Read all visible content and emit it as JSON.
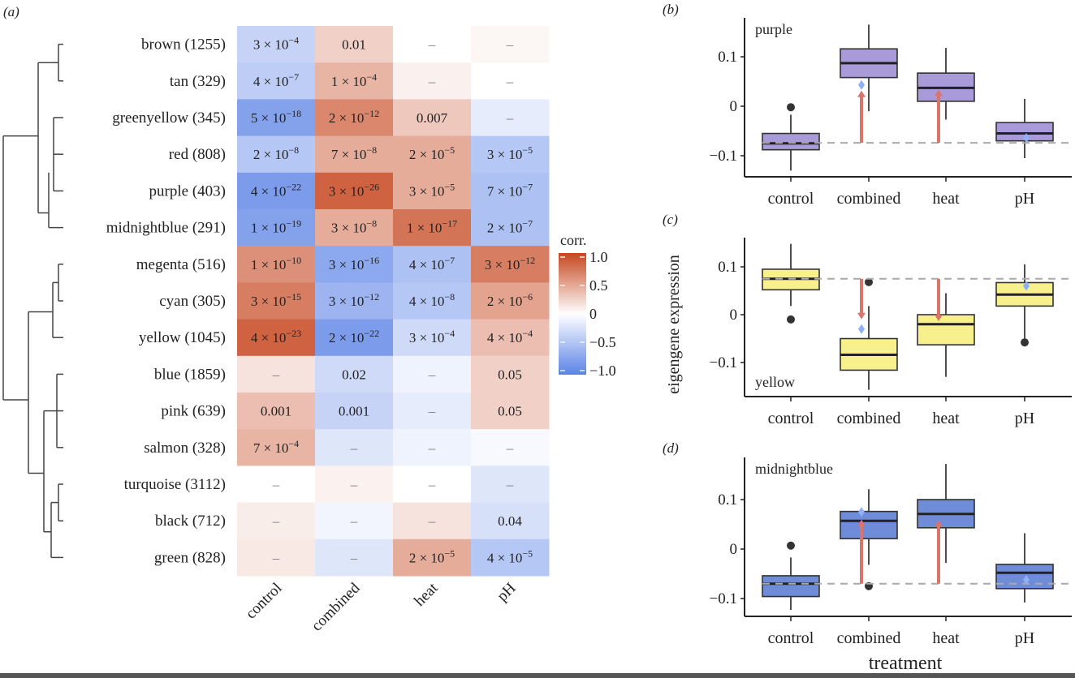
{
  "chart_data": [
    {
      "type": "heatmap",
      "panel_label": "(a)",
      "title": "",
      "columns": [
        "control",
        "combined",
        "heat",
        "pH"
      ],
      "rows": [
        "brown (1255)",
        "tan (329)",
        "greenyellow (345)",
        "red (808)",
        "purple (403)",
        "midnightblue (291)",
        "megenta (516)",
        "cyan (305)",
        "yellow (1045)",
        "blue (1859)",
        "pink (639)",
        "salmon (328)",
        "turquoise (3112)",
        "black (712)",
        "green (828)"
      ],
      "correlations": [
        [
          -0.35,
          0.25,
          0.0,
          0.05
        ],
        [
          -0.4,
          0.4,
          0.08,
          0.0
        ],
        [
          -0.75,
          0.65,
          0.3,
          -0.15
        ],
        [
          -0.45,
          0.45,
          0.45,
          -0.45
        ],
        [
          -0.8,
          0.85,
          0.45,
          -0.5
        ],
        [
          -0.75,
          0.45,
          0.75,
          -0.5
        ],
        [
          0.6,
          -0.7,
          -0.5,
          0.7
        ],
        [
          0.7,
          -0.6,
          -0.45,
          0.5
        ],
        [
          0.85,
          -0.8,
          -0.3,
          0.35
        ],
        [
          0.15,
          -0.3,
          -0.1,
          0.25
        ],
        [
          0.35,
          -0.35,
          -0.15,
          0.25
        ],
        [
          0.4,
          -0.2,
          -0.1,
          -0.05
        ],
        [
          0.0,
          0.07,
          0.0,
          -0.2
        ],
        [
          0.1,
          -0.08,
          0.15,
          -0.25
        ],
        [
          0.12,
          -0.2,
          0.45,
          -0.45
        ]
      ],
      "cell_labels": [
        [
          {
            "m": "3",
            "e": "−4"
          },
          "0.01",
          "–",
          "–"
        ],
        [
          {
            "m": "4",
            "e": "−7"
          },
          {
            "m": "1",
            "e": "−4"
          },
          "–",
          "–"
        ],
        [
          {
            "m": "5",
            "e": "−18"
          },
          {
            "m": "2",
            "e": "−12"
          },
          "0.007",
          "–"
        ],
        [
          {
            "m": "2",
            "e": "−8"
          },
          {
            "m": "7",
            "e": "−8"
          },
          {
            "m": "2",
            "e": "−5"
          },
          {
            "m": "3",
            "e": "−5"
          }
        ],
        [
          {
            "m": "4",
            "e": "−22"
          },
          {
            "m": "3",
            "e": "−26"
          },
          {
            "m": "3",
            "e": "−5"
          },
          {
            "m": "7",
            "e": "−7"
          }
        ],
        [
          {
            "m": "1",
            "e": "−19"
          },
          {
            "m": "3",
            "e": "−8"
          },
          {
            "m": "1",
            "e": "−17"
          },
          {
            "m": "2",
            "e": "−7"
          }
        ],
        [
          {
            "m": "1",
            "e": "−10"
          },
          {
            "m": "3",
            "e": "−16"
          },
          {
            "m": "4",
            "e": "−7"
          },
          {
            "m": "3",
            "e": "−12"
          }
        ],
        [
          {
            "m": "3",
            "e": "−15"
          },
          {
            "m": "3",
            "e": "−12"
          },
          {
            "m": "4",
            "e": "−8"
          },
          {
            "m": "2",
            "e": "−6"
          }
        ],
        [
          {
            "m": "4",
            "e": "−23"
          },
          {
            "m": "2",
            "e": "−22"
          },
          {
            "m": "3",
            "e": "−4"
          },
          {
            "m": "4",
            "e": "−4"
          }
        ],
        [
          "–",
          "0.02",
          "–",
          "0.05"
        ],
        [
          "0.001",
          "0.001",
          "–",
          "0.05"
        ],
        [
          {
            "m": "7",
            "e": "−4"
          },
          "–",
          "–",
          "–"
        ],
        [
          "–",
          "–",
          "–",
          "–"
        ],
        [
          "–",
          "–",
          "–",
          "0.04"
        ],
        [
          "–",
          "–",
          {
            "m": "2",
            "e": "−5"
          },
          {
            "m": "4",
            "e": "−5"
          }
        ]
      ],
      "legend": {
        "title": "corr.",
        "ticks": [
          1.0,
          0.5,
          0,
          -0.5,
          -1.0
        ],
        "tick_labels": [
          "1.0",
          "0.5",
          "0",
          "−0.5",
          "−1.0"
        ],
        "range": [
          -1,
          1
        ],
        "colors": {
          "low": "#5b82e6",
          "mid": "#ffffff",
          "high": "#c6461f"
        },
        "placement": "right"
      },
      "dendrogram": "hierarchical clustering of modules (left)"
    },
    {
      "type": "box",
      "panel_label": "(b)",
      "module": "purple",
      "fill": "#a99ad9",
      "categories": [
        "control",
        "combined",
        "heat",
        "pH"
      ],
      "ylim": [
        -0.15,
        0.17
      ],
      "yticks": [
        0.1,
        0,
        -0.1
      ],
      "ytick_labels": [
        "0.1",
        "0",
        "−0.1"
      ],
      "boxes": [
        {
          "min": -0.13,
          "q1": -0.088,
          "median": -0.075,
          "q3": -0.055,
          "max": -0.017,
          "outliers": [
            -0.002
          ]
        },
        {
          "min": -0.01,
          "q1": 0.058,
          "median": 0.087,
          "q3": 0.116,
          "max": 0.165,
          "outliers": []
        },
        {
          "min": -0.027,
          "q1": 0.01,
          "median": 0.037,
          "q3": 0.067,
          "max": 0.118,
          "outliers": []
        },
        {
          "min": -0.105,
          "q1": -0.07,
          "median": -0.055,
          "q3": -0.033,
          "max": 0.015,
          "outliers": []
        }
      ],
      "reference_line": -0.074,
      "arrows": [
        {
          "category": "combined",
          "from": -0.074,
          "to": 0.03,
          "color": "#d9756a"
        },
        {
          "category": "heat",
          "from": -0.074,
          "to": 0.032,
          "color": "#d9756a"
        }
      ],
      "additive_points": [
        {
          "category": "combined",
          "value": 0.043
        },
        {
          "category": "pH",
          "value": -0.064
        }
      ]
    },
    {
      "type": "box",
      "panel_label": "(c)",
      "module": "yellow",
      "fill": "#f7f08c",
      "categories": [
        "control",
        "combined",
        "heat",
        "pH"
      ],
      "ylim": [
        -0.17,
        0.16
      ],
      "yticks": [
        0.1,
        0,
        -0.1
      ],
      "ytick_labels": [
        "0.1",
        "0",
        "−0.1"
      ],
      "ylabel": "eigengene expression",
      "boxes": [
        {
          "min": 0.018,
          "q1": 0.052,
          "median": 0.075,
          "q3": 0.095,
          "max": 0.148,
          "outliers": [
            -0.01
          ]
        },
        {
          "min": -0.157,
          "q1": -0.116,
          "median": -0.084,
          "q3": -0.05,
          "max": 0.018,
          "outliers": [
            0.068
          ]
        },
        {
          "min": -0.13,
          "q1": -0.063,
          "median": -0.02,
          "q3": 0.0,
          "max": 0.045,
          "outliers": []
        },
        {
          "min": -0.055,
          "q1": 0.018,
          "median": 0.042,
          "q3": 0.067,
          "max": 0.105,
          "outliers": [
            -0.058
          ]
        }
      ],
      "reference_line": 0.075,
      "arrows": [
        {
          "category": "combined",
          "from": 0.075,
          "to": -0.008,
          "color": "#d9756a"
        },
        {
          "category": "heat",
          "from": 0.075,
          "to": -0.012,
          "color": "#d9756a"
        }
      ],
      "additive_points": [
        {
          "category": "combined",
          "value": -0.03
        },
        {
          "category": "pH",
          "value": 0.06
        }
      ]
    },
    {
      "type": "box",
      "panel_label": "(d)",
      "module": "midnightblue",
      "fill": "#6f8cd9",
      "categories": [
        "control",
        "combined",
        "heat",
        "pH"
      ],
      "ylim": [
        -0.14,
        0.18
      ],
      "yticks": [
        0.1,
        0,
        -0.1
      ],
      "ytick_labels": [
        "0.1",
        "0",
        "−0.1"
      ],
      "xlabel": "treatment",
      "boxes": [
        {
          "min": -0.123,
          "q1": -0.096,
          "median": -0.07,
          "q3": -0.054,
          "max": -0.017,
          "outliers": [
            0.007
          ]
        },
        {
          "min": -0.032,
          "q1": 0.021,
          "median": 0.057,
          "q3": 0.076,
          "max": 0.121,
          "outliers": [
            -0.075
          ]
        },
        {
          "min": -0.028,
          "q1": 0.043,
          "median": 0.071,
          "q3": 0.1,
          "max": 0.172,
          "outliers": []
        },
        {
          "min": -0.108,
          "q1": -0.08,
          "median": -0.048,
          "q3": -0.031,
          "max": 0.032,
          "outliers": []
        }
      ],
      "reference_line": -0.07,
      "arrows": [
        {
          "category": "combined",
          "from": -0.07,
          "to": 0.058,
          "color": "#d9756a"
        },
        {
          "category": "heat",
          "from": -0.07,
          "to": 0.057,
          "color": "#d9756a"
        }
      ],
      "additive_points": [
        {
          "category": "combined",
          "value": 0.075
        },
        {
          "category": "pH",
          "value": -0.062
        }
      ]
    }
  ]
}
